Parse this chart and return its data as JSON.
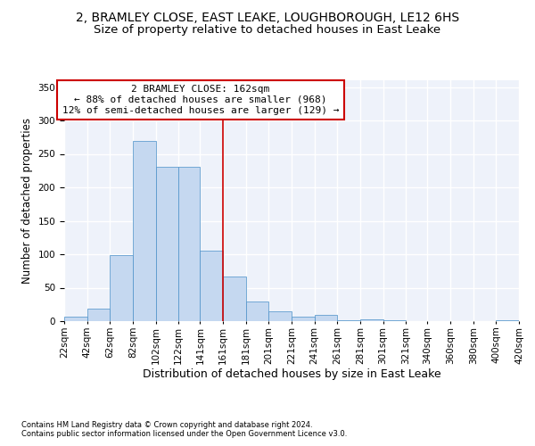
{
  "title": "2, BRAMLEY CLOSE, EAST LEAKE, LOUGHBOROUGH, LE12 6HS",
  "subtitle": "Size of property relative to detached houses in East Leake",
  "xlabel": "Distribution of detached houses by size in East Leake",
  "ylabel": "Number of detached properties",
  "footer1": "Contains HM Land Registry data © Crown copyright and database right 2024.",
  "footer2": "Contains public sector information licensed under the Open Government Licence v3.0.",
  "annotation_line1": "2 BRAMLEY CLOSE: 162sqm",
  "annotation_line2": "← 88% of detached houses are smaller (968)",
  "annotation_line3": "12% of semi-detached houses are larger (129) →",
  "property_size": 162,
  "bin_edges": [
    22,
    42,
    62,
    82,
    102,
    122,
    141,
    161,
    181,
    201,
    221,
    241,
    261,
    281,
    301,
    321,
    340,
    360,
    380,
    400,
    420
  ],
  "bar_heights": [
    7,
    19,
    99,
    270,
    231,
    231,
    105,
    67,
    30,
    15,
    7,
    10,
    2,
    3,
    2,
    0,
    0,
    0,
    0,
    2
  ],
  "bar_color": "#c5d8f0",
  "bar_edge_color": "#4a90c8",
  "vline_color": "#cc0000",
  "vline_x": 161,
  "annotation_box_color": "#cc0000",
  "ylim": [
    0,
    360
  ],
  "yticks": [
    0,
    50,
    100,
    150,
    200,
    250,
    300,
    350
  ],
  "bg_color": "#eef2fa",
  "grid_color": "#ffffff",
  "title_fontsize": 10,
  "subtitle_fontsize": 9.5,
  "xlabel_fontsize": 9,
  "ylabel_fontsize": 8.5,
  "tick_fontsize": 7.5,
  "footer_fontsize": 6,
  "annotation_fontsize": 8
}
